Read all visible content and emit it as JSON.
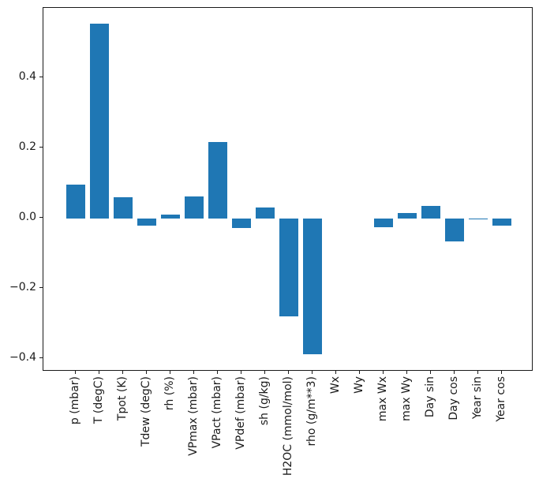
{
  "figure": {
    "background": "#ffffff",
    "frame_color": "#1a1a1a",
    "text_color": "#1a1a1a"
  },
  "chart_data": {
    "type": "bar",
    "title": "",
    "xlabel": "",
    "ylabel": "",
    "grid": false,
    "legend": null,
    "bar_color": "#1f77b4",
    "bar_rel_width": 0.8,
    "x_tick_rotation": 90,
    "categories": [
      "p (mbar)",
      "T (degC)",
      "Tpot (K)",
      "Tdew (degC)",
      "rh (%)",
      "VPmax (mbar)",
      "VPact (mbar)",
      "VPdef (mbar)",
      "sh (g/kg)",
      "H2OC (mmol/mol)",
      "rho (g/m**3)",
      "Wx",
      "Wy",
      "max Wx",
      "max Wy",
      "Day sin",
      "Day cos",
      "Year sin",
      "Year cos"
    ],
    "values": [
      0.096,
      0.553,
      0.06,
      -0.02,
      0.01,
      0.063,
      0.216,
      -0.028,
      0.031,
      -0.279,
      -0.386,
      0.0,
      0.0,
      -0.025,
      0.014,
      0.034,
      -0.065,
      -0.004,
      -0.02
    ],
    "xlim": [
      -1.37,
      19.33
    ],
    "ylim": [
      -0.436,
      0.598
    ],
    "yticks": [
      {
        "value": 0.4,
        "label": "0.4"
      },
      {
        "value": 0.2,
        "label": "0.2"
      },
      {
        "value": 0.0,
        "label": "0.0"
      },
      {
        "value": -0.2,
        "label": "−0.2"
      },
      {
        "value": -0.4,
        "label": "−0.4"
      }
    ]
  }
}
